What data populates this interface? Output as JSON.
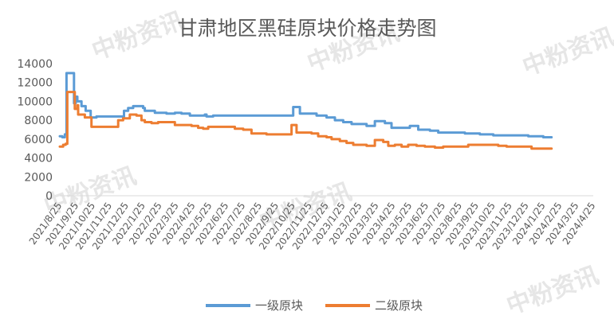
{
  "watermark_text": "中粉资讯",
  "chart_data": {
    "type": "line",
    "title": "甘肃地区黑硅原块价格走势图",
    "xlabel": "",
    "ylabel": "",
    "ylim": [
      0,
      14000
    ],
    "yticks": [
      0,
      2000,
      4000,
      6000,
      8000,
      10000,
      12000,
      14000
    ],
    "grid": false,
    "legend_position": "bottom",
    "xticks": [
      "2021/8/25",
      "2021/9/25",
      "2021/10/25",
      "2021/11/25",
      "2021/12/25",
      "2022/1/25",
      "2022/2/25",
      "2022/3/25",
      "2022/4/25",
      "2022/5/25",
      "2022/6/25",
      "2022/7/25",
      "2022/8/25",
      "2022/9/25",
      "2022/10/25",
      "2022/11/25",
      "2022/12/25",
      "2023/1/25",
      "2023/2/25",
      "2023/3/25",
      "2023/4/25",
      "2023/5/25",
      "2023/6/25",
      "2023/7/25",
      "2023/8/25",
      "2023/9/25",
      "2023/10/25",
      "2023/11/25",
      "2023/12/25",
      "2024/1/25",
      "2024/2/25",
      "2024/3/25",
      "2024/4/25"
    ],
    "series": [
      {
        "name": "一级原块",
        "color": "#5b9bd5",
        "points": [
          [
            0,
            6300
          ],
          [
            0.15,
            6200
          ],
          [
            0.3,
            6500
          ],
          [
            0.4,
            13000
          ],
          [
            0.75,
            13000
          ],
          [
            0.85,
            9800
          ],
          [
            0.95,
            10500
          ],
          [
            1.05,
            10000
          ],
          [
            1.3,
            9500
          ],
          [
            1.55,
            9000
          ],
          [
            1.85,
            8300
          ],
          [
            2.2,
            8400
          ],
          [
            3.0,
            8400
          ],
          [
            3.8,
            8300
          ],
          [
            3.85,
            9000
          ],
          [
            4.1,
            9300
          ],
          [
            4.4,
            9500
          ],
          [
            5.0,
            9300
          ],
          [
            5.1,
            9000
          ],
          [
            5.7,
            8800
          ],
          [
            6.4,
            8700
          ],
          [
            6.9,
            8800
          ],
          [
            7.3,
            8700
          ],
          [
            7.8,
            8500
          ],
          [
            8.7,
            8600
          ],
          [
            8.8,
            8400
          ],
          [
            9.2,
            8500
          ],
          [
            13.6,
            8500
          ],
          [
            14.0,
            9400
          ],
          [
            14.4,
            8700
          ],
          [
            15.4,
            8500
          ],
          [
            16.0,
            8300
          ],
          [
            16.5,
            8000
          ],
          [
            17.0,
            7800
          ],
          [
            17.5,
            7600
          ],
          [
            18.4,
            7400
          ],
          [
            18.9,
            7900
          ],
          [
            19.5,
            7700
          ],
          [
            19.9,
            7200
          ],
          [
            20.5,
            7200
          ],
          [
            21.0,
            7400
          ],
          [
            21.5,
            7000
          ],
          [
            22.2,
            6900
          ],
          [
            22.7,
            6700
          ],
          [
            23.8,
            6700
          ],
          [
            24.3,
            6600
          ],
          [
            25.2,
            6500
          ],
          [
            26.0,
            6400
          ],
          [
            27.0,
            6400
          ],
          [
            28.1,
            6300
          ],
          [
            29.0,
            6200
          ],
          [
            29.5,
            6200
          ]
        ]
      },
      {
        "name": "二级原块",
        "color": "#ed7d31",
        "points": [
          [
            0,
            5200
          ],
          [
            0.2,
            5400
          ],
          [
            0.35,
            5500
          ],
          [
            0.45,
            11000
          ],
          [
            0.8,
            11000
          ],
          [
            0.9,
            9200
          ],
          [
            1.05,
            9600
          ],
          [
            1.1,
            8600
          ],
          [
            1.5,
            8300
          ],
          [
            1.9,
            7300
          ],
          [
            2.2,
            7300
          ],
          [
            3.0,
            7300
          ],
          [
            3.4,
            7300
          ],
          [
            3.5,
            8000
          ],
          [
            3.8,
            8200
          ],
          [
            4.2,
            8600
          ],
          [
            4.6,
            8500
          ],
          [
            4.9,
            8000
          ],
          [
            5.1,
            7800
          ],
          [
            5.5,
            7700
          ],
          [
            5.9,
            7800
          ],
          [
            6.6,
            7800
          ],
          [
            6.9,
            7500
          ],
          [
            7.5,
            7500
          ],
          [
            7.9,
            7400
          ],
          [
            8.3,
            7200
          ],
          [
            8.6,
            7100
          ],
          [
            8.9,
            7300
          ],
          [
            9.5,
            7300
          ],
          [
            10.5,
            7100
          ],
          [
            11.0,
            7000
          ],
          [
            11.5,
            6600
          ],
          [
            12.1,
            6600
          ],
          [
            12.4,
            6500
          ],
          [
            12.9,
            6500
          ],
          [
            13.6,
            6500
          ],
          [
            13.9,
            7500
          ],
          [
            14.2,
            6700
          ],
          [
            15.1,
            6600
          ],
          [
            15.5,
            6300
          ],
          [
            16.0,
            6200
          ],
          [
            16.3,
            6000
          ],
          [
            16.8,
            5800
          ],
          [
            17.2,
            5600
          ],
          [
            17.6,
            5400
          ],
          [
            18.4,
            5300
          ],
          [
            18.9,
            5900
          ],
          [
            19.4,
            5700
          ],
          [
            19.7,
            5300
          ],
          [
            20.1,
            5400
          ],
          [
            20.5,
            5200
          ],
          [
            20.9,
            5400
          ],
          [
            21.4,
            5300
          ],
          [
            21.9,
            5200
          ],
          [
            22.5,
            5100
          ],
          [
            23.0,
            5200
          ],
          [
            24.2,
            5200
          ],
          [
            24.5,
            5400
          ],
          [
            25.2,
            5400
          ],
          [
            25.8,
            5400
          ],
          [
            26.3,
            5300
          ],
          [
            26.8,
            5200
          ],
          [
            27.5,
            5200
          ],
          [
            28.3,
            5000
          ],
          [
            29.0,
            5000
          ],
          [
            29.5,
            5000
          ]
        ]
      }
    ]
  }
}
